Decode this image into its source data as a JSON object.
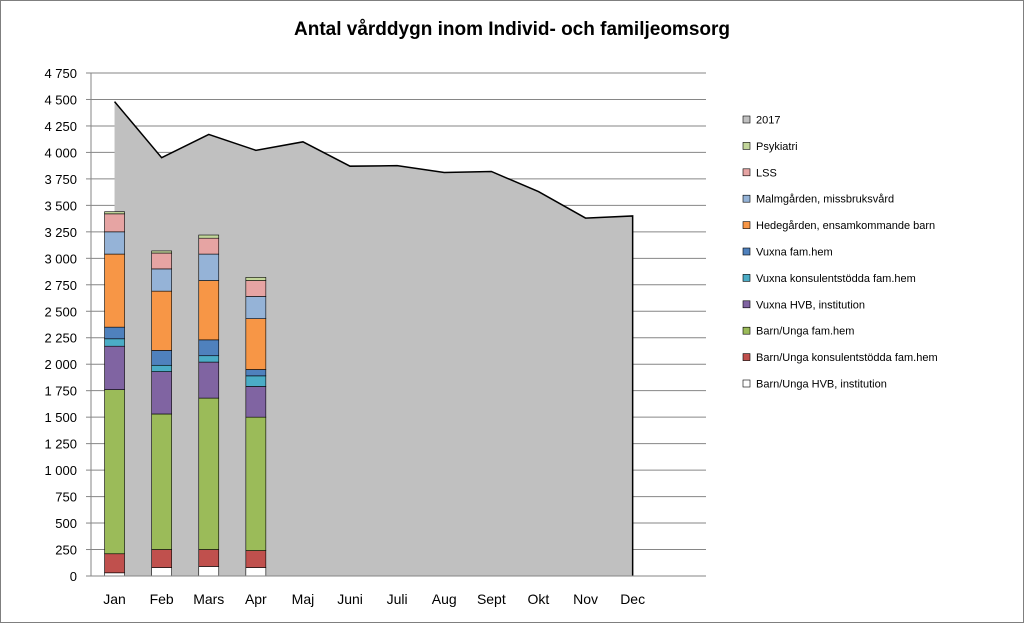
{
  "chart_data": {
    "type": "bar",
    "title": "Antal vårddygn inom Individ- och familjeomsorg",
    "xlabel": "",
    "ylabel": "",
    "ylim": [
      0,
      4750
    ],
    "ytick_step": 250,
    "yticks": [
      "0",
      "250",
      "500",
      "750",
      "1 000",
      "1 250",
      "1 500",
      "1 750",
      "2 000",
      "2 250",
      "2 500",
      "2 750",
      "3 000",
      "3 250",
      "3 500",
      "3 750",
      "4 000",
      "4 250",
      "4 500",
      "4 750"
    ],
    "grid": true,
    "legend_position": "right",
    "categories": [
      "Jan",
      "Feb",
      "Mars",
      "Apr",
      "Maj",
      "Juni",
      "Juli",
      "Aug",
      "Sept",
      "Okt",
      "Nov",
      "Dec"
    ],
    "area_series": {
      "name": "2017",
      "color": "#c0c0c0",
      "values": [
        4480,
        3950,
        4170,
        4020,
        4100,
        3870,
        3875,
        3810,
        3820,
        3630,
        3380,
        3400
      ]
    },
    "stacked_series": [
      {
        "name": "Barn/Unga HVB, institution",
        "color": "#ffffff",
        "values": [
          30,
          80,
          90,
          80
        ]
      },
      {
        "name": "Barn/Unga konsulentstödda fam.hem",
        "color": "#c0504d",
        "values": [
          180,
          170,
          160,
          160
        ]
      },
      {
        "name": "Barn/Unga fam.hem",
        "color": "#9bbb59",
        "values": [
          1550,
          1280,
          1430,
          1260
        ]
      },
      {
        "name": "Vuxna HVB, institution",
        "color": "#8064a2",
        "values": [
          410,
          400,
          340,
          290
        ]
      },
      {
        "name": "Vuxna konsulentstödda fam.hem",
        "color": "#4bacc6",
        "values": [
          70,
          60,
          60,
          100
        ]
      },
      {
        "name": "Vuxna fam.hem",
        "color": "#4f81bd",
        "values": [
          110,
          140,
          150,
          60
        ]
      },
      {
        "name": "Hedegården, ensamkommande barn",
        "color": "#f79646",
        "values": [
          690,
          560,
          560,
          480
        ]
      },
      {
        "name": "Malmgården, missbruksvård",
        "color": "#95b3d7",
        "values": [
          210,
          210,
          250,
          210
        ]
      },
      {
        "name": "LSS",
        "color": "#e6a4a3",
        "values": [
          170,
          150,
          150,
          150
        ]
      },
      {
        "name": "Psykiatri",
        "color": "#c3d69b",
        "values": [
          20,
          20,
          30,
          30
        ]
      }
    ],
    "legend_order": [
      "2017",
      "Psykiatri",
      "LSS",
      "Malmgården, missbruksvård",
      "Hedegården, ensamkommande barn",
      "Vuxna fam.hem",
      "Vuxna konsulentstödda fam.hem",
      "Vuxna HVB, institution",
      "Barn/Unga fam.hem",
      "Barn/Unga konsulentstödda fam.hem",
      "Barn/Unga HVB, institution"
    ]
  }
}
